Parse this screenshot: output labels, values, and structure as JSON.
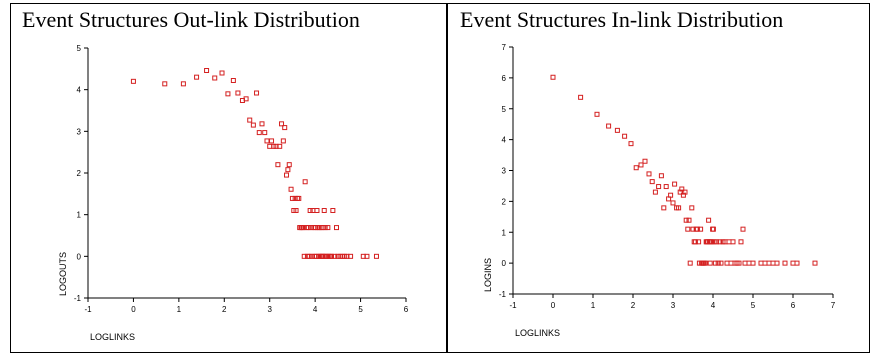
{
  "colors": {
    "marker": "#d42020",
    "axis": "#000000"
  },
  "chart_data": [
    {
      "type": "scatter",
      "title": "Event Structures Out-link Distribution",
      "xlabel": "LOGLINKS",
      "ylabel": "LOGOUTS",
      "xlim": [
        -1,
        6
      ],
      "ylim": [
        -1,
        5
      ],
      "xticks": [
        "-1",
        "0",
        "1",
        "2",
        "3",
        "4",
        "5",
        "6"
      ],
      "yticks": [
        "-1",
        "0",
        "1",
        "2",
        "3",
        "4",
        "5"
      ],
      "points": [
        [
          0.0,
          4.2
        ],
        [
          0.69,
          4.14
        ],
        [
          1.1,
          4.14
        ],
        [
          1.39,
          4.3
        ],
        [
          1.61,
          4.46
        ],
        [
          1.79,
          4.28
        ],
        [
          1.95,
          4.4
        ],
        [
          2.08,
          3.9
        ],
        [
          2.2,
          4.22
        ],
        [
          2.3,
          3.92
        ],
        [
          2.4,
          3.74
        ],
        [
          2.48,
          3.78
        ],
        [
          2.56,
          3.27
        ],
        [
          2.64,
          3.15
        ],
        [
          2.71,
          3.92
        ],
        [
          2.77,
          2.97
        ],
        [
          2.83,
          3.18
        ],
        [
          2.89,
          2.97
        ],
        [
          2.94,
          2.77
        ],
        [
          3.0,
          2.64
        ],
        [
          3.04,
          2.77
        ],
        [
          3.09,
          2.64
        ],
        [
          3.14,
          2.64
        ],
        [
          3.18,
          2.2
        ],
        [
          3.22,
          2.64
        ],
        [
          3.26,
          3.18
        ],
        [
          3.3,
          2.77
        ],
        [
          3.33,
          3.09
        ],
        [
          3.37,
          1.95
        ],
        [
          3.4,
          2.08
        ],
        [
          3.43,
          2.2
        ],
        [
          3.47,
          1.61
        ],
        [
          3.5,
          1.39
        ],
        [
          3.53,
          1.1
        ],
        [
          3.56,
          1.39
        ],
        [
          3.58,
          1.1
        ],
        [
          3.61,
          1.39
        ],
        [
          3.64,
          1.39
        ],
        [
          3.66,
          0.69
        ],
        [
          3.69,
          0.69
        ],
        [
          3.71,
          0.69
        ],
        [
          3.74,
          0.69
        ],
        [
          3.76,
          0.0
        ],
        [
          3.78,
          1.79
        ],
        [
          3.81,
          0.69
        ],
        [
          3.83,
          0.0
        ],
        [
          3.85,
          0.69
        ],
        [
          3.87,
          0.0
        ],
        [
          3.89,
          1.1
        ],
        [
          3.91,
          0.69
        ],
        [
          3.93,
          0.0
        ],
        [
          3.95,
          1.1
        ],
        [
          3.97,
          0.69
        ],
        [
          3.99,
          0.0
        ],
        [
          4.01,
          0.69
        ],
        [
          4.03,
          0.0
        ],
        [
          4.04,
          1.1
        ],
        [
          4.06,
          0.69
        ],
        [
          4.08,
          0.0
        ],
        [
          4.09,
          0.69
        ],
        [
          4.11,
          0.0
        ],
        [
          4.13,
          0.69
        ],
        [
          4.14,
          0.0
        ],
        [
          4.16,
          0.0
        ],
        [
          4.17,
          0.69
        ],
        [
          4.19,
          0.0
        ],
        [
          4.2,
          1.1
        ],
        [
          4.22,
          0.69
        ],
        [
          4.23,
          0.0
        ],
        [
          4.25,
          0.0
        ],
        [
          4.28,
          0.69
        ],
        [
          4.3,
          0.0
        ],
        [
          4.33,
          0.0
        ],
        [
          4.36,
          0.0
        ],
        [
          4.39,
          1.1
        ],
        [
          4.43,
          0.0
        ],
        [
          4.47,
          0.69
        ],
        [
          4.5,
          0.0
        ],
        [
          4.55,
          0.0
        ],
        [
          4.6,
          0.0
        ],
        [
          4.65,
          0.0
        ],
        [
          4.7,
          0.0
        ],
        [
          4.78,
          0.0
        ],
        [
          5.06,
          0.0
        ],
        [
          5.14,
          0.0
        ],
        [
          5.35,
          0.0
        ]
      ]
    },
    {
      "type": "scatter",
      "title": "Event Structures In-link Distribution",
      "xlabel": "LOGLINKS",
      "ylabel": "LOGINS",
      "xlim": [
        -1,
        7
      ],
      "ylim": [
        -1,
        7
      ],
      "xticks": [
        "-1",
        "0",
        "1",
        "2",
        "3",
        "4",
        "5",
        "6",
        "7"
      ],
      "yticks": [
        "-1",
        "0",
        "1",
        "2",
        "3",
        "4",
        "5",
        "6",
        "7"
      ],
      "points": [
        [
          0.0,
          6.02
        ],
        [
          0.69,
          5.37
        ],
        [
          1.1,
          4.82
        ],
        [
          1.39,
          4.44
        ],
        [
          1.61,
          4.3
        ],
        [
          1.79,
          4.11
        ],
        [
          1.95,
          3.87
        ],
        [
          2.08,
          3.09
        ],
        [
          2.2,
          3.18
        ],
        [
          2.3,
          3.3
        ],
        [
          2.4,
          2.89
        ],
        [
          2.48,
          2.64
        ],
        [
          2.56,
          2.3
        ],
        [
          2.64,
          2.48
        ],
        [
          2.71,
          2.83
        ],
        [
          2.77,
          1.79
        ],
        [
          2.83,
          2.48
        ],
        [
          2.89,
          2.08
        ],
        [
          2.94,
          2.2
        ],
        [
          3.0,
          1.95
        ],
        [
          3.04,
          2.56
        ],
        [
          3.09,
          1.79
        ],
        [
          3.14,
          1.79
        ],
        [
          3.18,
          2.3
        ],
        [
          3.22,
          2.4
        ],
        [
          3.26,
          2.2
        ],
        [
          3.3,
          2.3
        ],
        [
          3.33,
          1.39
        ],
        [
          3.37,
          1.1
        ],
        [
          3.4,
          1.39
        ],
        [
          3.43,
          0.0
        ],
        [
          3.47,
          1.79
        ],
        [
          3.5,
          1.1
        ],
        [
          3.53,
          0.69
        ],
        [
          3.56,
          0.69
        ],
        [
          3.58,
          1.1
        ],
        [
          3.61,
          1.1
        ],
        [
          3.64,
          0.69
        ],
        [
          3.66,
          0.0
        ],
        [
          3.69,
          1.1
        ],
        [
          3.71,
          0.0
        ],
        [
          3.74,
          0.0
        ],
        [
          3.76,
          0.0
        ],
        [
          3.78,
          0.0
        ],
        [
          3.81,
          0.0
        ],
        [
          3.83,
          0.69
        ],
        [
          3.85,
          0.69
        ],
        [
          3.87,
          0.69
        ],
        [
          3.89,
          1.39
        ],
        [
          3.91,
          0.69
        ],
        [
          3.93,
          0.0
        ],
        [
          3.95,
          0.69
        ],
        [
          3.97,
          0.69
        ],
        [
          3.99,
          1.1
        ],
        [
          4.01,
          1.1
        ],
        [
          4.03,
          0.69
        ],
        [
          4.06,
          0.0
        ],
        [
          4.09,
          0.69
        ],
        [
          4.13,
          0.0
        ],
        [
          4.17,
          0.69
        ],
        [
          4.2,
          0.0
        ],
        [
          4.25,
          0.69
        ],
        [
          4.3,
          0.69
        ],
        [
          4.35,
          0.0
        ],
        [
          4.4,
          0.69
        ],
        [
          4.45,
          0.0
        ],
        [
          4.5,
          0.69
        ],
        [
          4.55,
          0.0
        ],
        [
          4.6,
          0.0
        ],
        [
          4.65,
          0.0
        ],
        [
          4.7,
          0.69
        ],
        [
          4.75,
          1.1
        ],
        [
          4.8,
          0.0
        ],
        [
          4.9,
          0.0
        ],
        [
          5.0,
          0.0
        ],
        [
          5.2,
          0.0
        ],
        [
          5.3,
          0.0
        ],
        [
          5.4,
          0.0
        ],
        [
          5.5,
          0.0
        ],
        [
          5.6,
          0.0
        ],
        [
          5.8,
          0.0
        ],
        [
          6.0,
          0.0
        ],
        [
          6.1,
          0.0
        ],
        [
          6.55,
          0.0
        ]
      ]
    }
  ]
}
